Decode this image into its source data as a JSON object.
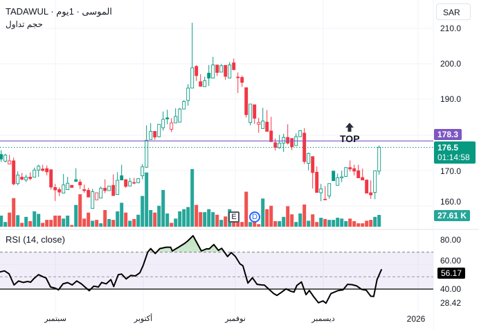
{
  "header": {
    "exchange": "TADAWUL",
    "symbol_name": "الموسى",
    "interval": "1يوم",
    "volume_label": "حجم تداول",
    "currency_button": "SAR"
  },
  "price_axis": [
    "210.0",
    "200.0",
    "190.0",
    "170.0",
    "160.0"
  ],
  "tags": {
    "horizontal_line": "178.3",
    "last_price": "176.5",
    "countdown": "01:14:58",
    "volume": "27.61 K"
  },
  "annotations": {
    "top_label": "TOP",
    "earnings_badge": "E",
    "dividend_badge": "D"
  },
  "rsi": {
    "title": "RSI (14, close)",
    "axis": [
      "80.00",
      "60.00",
      "40.00",
      "28.42"
    ],
    "current": "56.17"
  },
  "time_axis": [
    "سبتمبر",
    "أكتوبر",
    "نوفمبر",
    "ديسمبر",
    "2026"
  ],
  "colors": {
    "up": "#089981",
    "down": "#f23645",
    "vol_up": "#26a69a",
    "vol_down": "#ef5350",
    "line": "#7e57c2"
  },
  "chart_data": {
    "type": "candlestick",
    "price_levels": {
      "horizontal_line": 178.3,
      "last": 176.5
    },
    "ohlc": [
      [
        174.5,
        175.7,
        172.4,
        173.2
      ],
      [
        172.6,
        174.7,
        172.3,
        174.3
      ],
      [
        171.8,
        174.4,
        171.8,
        172.7
      ],
      [
        172.7,
        173.6,
        165.8,
        166.2
      ],
      [
        166.3,
        169.7,
        165.8,
        168.7
      ],
      [
        168.1,
        169.3,
        167.2,
        167.5
      ],
      [
        167.3,
        168.8,
        166.7,
        168.1
      ],
      [
        168.1,
        169.5,
        167.2,
        167.7
      ],
      [
        168.1,
        170.8,
        168.1,
        170.1
      ],
      [
        170.1,
        171.6,
        168.2,
        171.2
      ],
      [
        170.4,
        171.6,
        169.7,
        170.0
      ],
      [
        170.5,
        171.4,
        168.6,
        169.6
      ],
      [
        170.2,
        170.2,
        164.6,
        165.3
      ],
      [
        165.2,
        166.2,
        161.4,
        164.5
      ],
      [
        164.6,
        165.2,
        162.8,
        163.9
      ],
      [
        163.6,
        169.0,
        163.6,
        165.9
      ],
      [
        164.6,
        168.2,
        164.6,
        166.4
      ],
      [
        165.8,
        165.8,
        165.1,
        165.2
      ],
      [
        167.4,
        170.6,
        166.9,
        166.9
      ],
      [
        166.7,
        167.5,
        164.8,
        165.9
      ],
      [
        164.6,
        166.0,
        163.7,
        164.3
      ],
      [
        164.4,
        165.1,
        162.5,
        162.5
      ],
      [
        159.3,
        164.8,
        159.3,
        164.0
      ],
      [
        161.7,
        163.7,
        161.7,
        163.7
      ],
      [
        162.2,
        165.4,
        162.2,
        165.0
      ],
      [
        165.0,
        167.5,
        163.6,
        164.3
      ],
      [
        164.3,
        165.6,
        164.3,
        165.6
      ],
      [
        165.8,
        168.9,
        162.9,
        162.9
      ],
      [
        163.2,
        169.5,
        163.2,
        167.2
      ],
      [
        168.5,
        171.6,
        167.3,
        167.3
      ],
      [
        167.4,
        167.5,
        165.1,
        165.5
      ],
      [
        165.6,
        167.9,
        165.6,
        166.9
      ],
      [
        166.6,
        167.9,
        166.1,
        166.4
      ],
      [
        166.5,
        167.7,
        166.5,
        167.7
      ],
      [
        168.5,
        171.8,
        167.5,
        171.0
      ],
      [
        170.9,
        182.7,
        170.7,
        178.5
      ],
      [
        178.7,
        183.3,
        178.7,
        181.0
      ],
      [
        181.0,
        181.0,
        178.6,
        179.4
      ],
      [
        179.5,
        183.0,
        179.3,
        183.0
      ],
      [
        182.0,
        186.6,
        181.2,
        184.4
      ],
      [
        184.8,
        187.1,
        183.0,
        184.5
      ],
      [
        181.6,
        184.7,
        180.8,
        183.4
      ],
      [
        183.4,
        187.5,
        183.4,
        185.2
      ],
      [
        183.6,
        187.6,
        183.6,
        187.3
      ],
      [
        187.3,
        189.8,
        187.3,
        189.4
      ],
      [
        189.7,
        194.3,
        188.2,
        193.2
      ],
      [
        193.2,
        211.6,
        193.2,
        198.9
      ],
      [
        199.3,
        199.7,
        195.2,
        196.7
      ],
      [
        195.0,
        197.1,
        193.7,
        193.7
      ],
      [
        193.6,
        196.4,
        193.5,
        195.3
      ],
      [
        197.4,
        199.7,
        193.8,
        196.0
      ],
      [
        196.0,
        202.0,
        196.0,
        199.7
      ],
      [
        199.7,
        199.7,
        196.6,
        197.6
      ],
      [
        197.7,
        200.0,
        197.7,
        199.5
      ],
      [
        199.6,
        199.6,
        195.5,
        196.5
      ],
      [
        196.0,
        200.5,
        196.0,
        199.7
      ],
      [
        200.3,
        201.5,
        198.2,
        198.4
      ],
      [
        196.3,
        197.6,
        191.8,
        196.2
      ],
      [
        196.2,
        196.7,
        193.5,
        194.8
      ],
      [
        193.3,
        193.4,
        184.9,
        185.7
      ],
      [
        183.5,
        188.7,
        182.7,
        188.7
      ],
      [
        188.5,
        188.5,
        183.1,
        184.7
      ],
      [
        183.0,
        184.8,
        180.6,
        183.5
      ],
      [
        181.8,
        187.6,
        181.8,
        183.9
      ],
      [
        183.6,
        187.0,
        181.0,
        181.0
      ],
      [
        181.1,
        185.1,
        178.1,
        178.1
      ],
      [
        177.8,
        179.0,
        175.6,
        176.5
      ],
      [
        176.4,
        180.0,
        176.1,
        177.7
      ],
      [
        177.7,
        180.3,
        175.2,
        179.3
      ],
      [
        179.3,
        183.0,
        177.3,
        177.7
      ],
      [
        179.0,
        179.0,
        175.7,
        176.7
      ],
      [
        177.0,
        180.4,
        177.0,
        179.5
      ],
      [
        179.5,
        181.3,
        179.5,
        181.2
      ],
      [
        180.5,
        181.9,
        171.8,
        172.5
      ],
      [
        172.0,
        175.0,
        170.0,
        174.8
      ],
      [
        173.9,
        173.9,
        164.9,
        169.4
      ],
      [
        169.5,
        171.1,
        163.8,
        163.8
      ],
      [
        163.7,
        166.2,
        161.3,
        164.8
      ],
      [
        161.9,
        165.6,
        161.8,
        161.8
      ],
      [
        162.8,
        166.3,
        162.0,
        166.3
      ],
      [
        169.8,
        169.8,
        167.1,
        167.1
      ],
      [
        165.8,
        169.1,
        165.8,
        167.9
      ],
      [
        167.9,
        169.9,
        166.7,
        168.2
      ],
      [
        168.3,
        170.8,
        168.3,
        170.8
      ],
      [
        170.8,
        172.8,
        169.7,
        170.4
      ],
      [
        170.5,
        171.6,
        168.6,
        169.8
      ],
      [
        169.9,
        171.6,
        167.9,
        167.9
      ],
      [
        168.0,
        170.5,
        167.3,
        167.3
      ],
      [
        167.3,
        167.3,
        163.6,
        163.6
      ],
      [
        163.7,
        167.2,
        162.0,
        163.1
      ],
      [
        163.8,
        169.9,
        161.9,
        169.9
      ],
      [
        169.8,
        177.0,
        168.8,
        176.5
      ]
    ],
    "volume_k": [
      26,
      11,
      33,
      67,
      27,
      9,
      23,
      13,
      36,
      30,
      9,
      16,
      16,
      26,
      26,
      19,
      26,
      4,
      51,
      76,
      19,
      33,
      14,
      16,
      8,
      39,
      18,
      16,
      36,
      56,
      33,
      14,
      18,
      28,
      72,
      127,
      39,
      33,
      49,
      86,
      31,
      9,
      19,
      36,
      41,
      46,
      135,
      51,
      34,
      34,
      41,
      34,
      28,
      16,
      24,
      41,
      11,
      11,
      11,
      82,
      11,
      17,
      6,
      66,
      41,
      49,
      13,
      13,
      23,
      48,
      29,
      11,
      31,
      52,
      14,
      29,
      11,
      21,
      18,
      16,
      16,
      21,
      19,
      13,
      19,
      13,
      8,
      8,
      14,
      16,
      23,
      27.61
    ],
    "rsi_series": [
      [
        -0.3,
        53.9
      ],
      [
        0.8,
        54.8
      ],
      [
        1.9,
        52.4
      ],
      [
        3.1,
        43.4
      ],
      [
        4.2,
        46.6
      ],
      [
        5.3,
        45.4
      ],
      [
        6.4,
        46.2
      ],
      [
        7.1,
        45.6
      ],
      [
        7.9,
        48.6
      ],
      [
        9.0,
        51.8
      ],
      [
        10.1,
        50.0
      ],
      [
        10.8,
        49.0
      ],
      [
        11.9,
        41.7
      ],
      [
        13.1,
        40.6
      ],
      [
        13.8,
        39.4
      ],
      [
        14.9,
        44.3
      ],
      [
        16.0,
        45.3
      ],
      [
        17.1,
        43.4
      ],
      [
        18.2,
        46.6
      ],
      [
        19.3,
        44.3
      ],
      [
        21.2,
        38.7
      ],
      [
        22.3,
        42.4
      ],
      [
        23.4,
        41.7
      ],
      [
        24.2,
        45.4
      ],
      [
        25.3,
        44.3
      ],
      [
        26.4,
        47.7
      ],
      [
        27.1,
        42.1
      ],
      [
        28.2,
        51.8
      ],
      [
        29.0,
        52.2
      ],
      [
        30.1,
        48.3
      ],
      [
        31.2,
        51.1
      ],
      [
        32.3,
        50.7
      ],
      [
        33.4,
        53.3
      ],
      [
        34.2,
        59.3
      ],
      [
        35.3,
        70.2
      ],
      [
        36.0,
        72.9
      ],
      [
        37.1,
        68.9
      ],
      [
        38.2,
        72.9
      ],
      [
        39.7,
        74.0
      ],
      [
        40.8,
        74.0
      ],
      [
        41.2,
        71.0
      ],
      [
        42.7,
        74.0
      ],
      [
        44.2,
        77.2
      ],
      [
        44.9,
        79.1
      ],
      [
        46.2,
        83.4
      ],
      [
        48.2,
        71.0
      ],
      [
        49.4,
        72.7
      ],
      [
        50.1,
        72.7
      ],
      [
        51.2,
        76.2
      ],
      [
        52.3,
        71.5
      ],
      [
        53.1,
        73.1
      ],
      [
        54.5,
        66.5
      ],
      [
        55.4,
        69.7
      ],
      [
        56.4,
        66.5
      ],
      [
        57.5,
        60.5
      ],
      [
        58.2,
        59.0
      ],
      [
        59.4,
        44.9
      ],
      [
        60.5,
        49.2
      ],
      [
        61.6,
        43.9
      ],
      [
        62.7,
        43.4
      ],
      [
        63.4,
        43.2
      ],
      [
        64.5,
        39.8
      ],
      [
        65.6,
        36.4
      ],
      [
        66.4,
        34.9
      ],
      [
        67.5,
        37.4
      ],
      [
        68.6,
        40.2
      ],
      [
        69.7,
        38.3
      ],
      [
        70.5,
        37.6
      ],
      [
        71.2,
        43.0
      ],
      [
        72.3,
        45.8
      ],
      [
        73.4,
        35.5
      ],
      [
        74.2,
        38.9
      ],
      [
        75.3,
        33.6
      ],
      [
        76.4,
        28.9
      ],
      [
        77.5,
        30.4
      ],
      [
        78.2,
        28.5
      ],
      [
        79.4,
        36.4
      ],
      [
        80.5,
        37.9
      ],
      [
        81.2,
        38.9
      ],
      [
        82.3,
        39.4
      ],
      [
        83.4,
        43.9
      ],
      [
        84.5,
        43.6
      ],
      [
        85.6,
        42.6
      ],
      [
        86.8,
        39.8
      ],
      [
        87.9,
        39.1
      ],
      [
        89.0,
        34.2
      ],
      [
        89.7,
        34.0
      ],
      [
        90.5,
        47.7
      ],
      [
        91.6,
        56.17
      ]
    ],
    "rsi_levels": {
      "upper": 70,
      "middle": 50,
      "user_line": 40
    }
  }
}
